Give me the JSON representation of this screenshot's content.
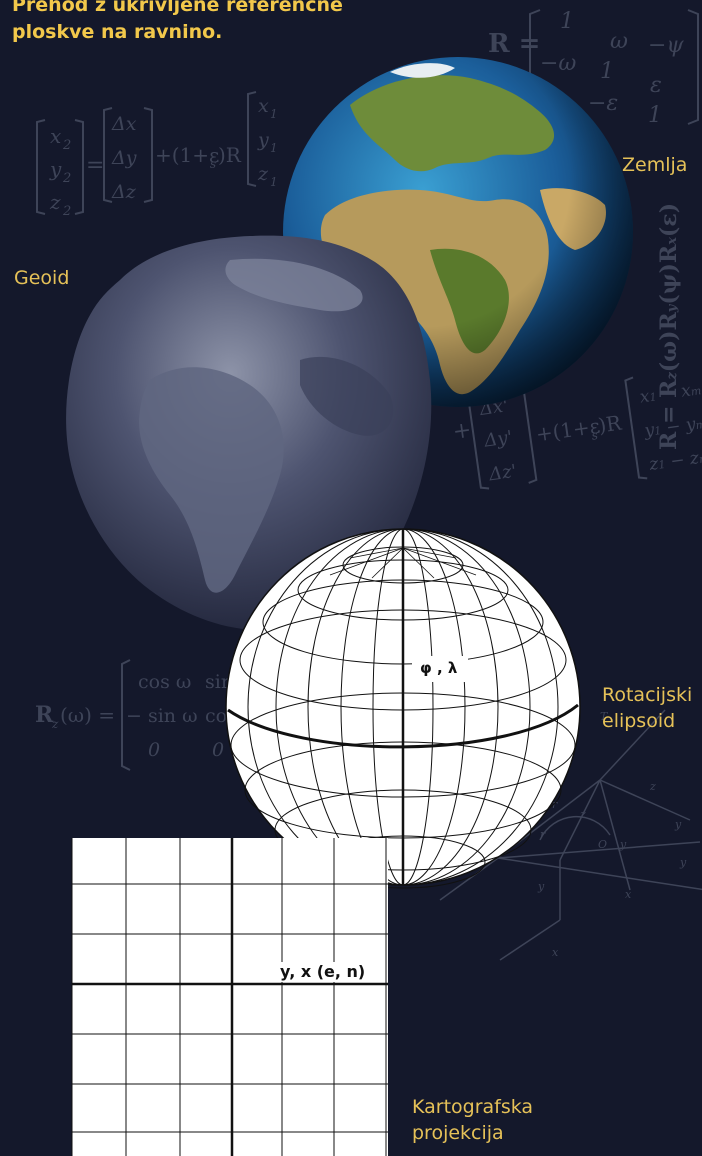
{
  "title": "Prehod z ukrivljene referenčne ploskve na ravnino.",
  "labels": {
    "earth": "Zemlja",
    "geoid": "Geoid",
    "ellipsoid_line1": "Rotacijski",
    "ellipsoid_line2": "elipsoid",
    "projection_line1": "Kartografska",
    "projection_line2": "projekcija"
  },
  "coords": {
    "ellipsoid": "φ , λ",
    "projection": "y, x (e, n)"
  },
  "colors": {
    "background": "#14182b",
    "label": "#e5c158",
    "title": "#f2c84b"
  }
}
